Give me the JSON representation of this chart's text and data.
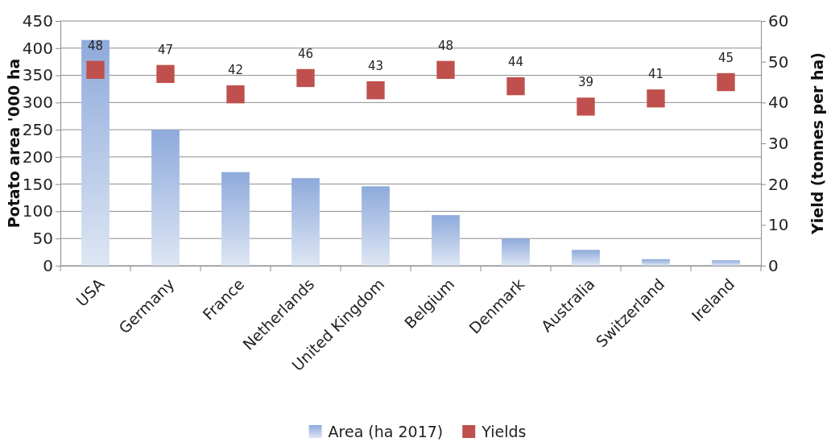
{
  "chart_data": {
    "type": "bar",
    "ylabel": "Potato area '000 ha",
    "y2label": "Yield (tonnes per ha)",
    "categories": [
      "USA",
      "Germany",
      "France",
      "Netherlands",
      "United Kingdom",
      "Belgium",
      "Denmark",
      "Australia",
      "Switzerland",
      "Ireland"
    ],
    "series": [
      {
        "name": "Area (ha 2017)",
        "color": "#8eaadb",
        "values": [
          415,
          250,
          172,
          161,
          146,
          93,
          50,
          29,
          12,
          10
        ]
      },
      {
        "name": "Yields",
        "type": "scatter",
        "axis": "y2",
        "color": "#c0504d",
        "marker": "square",
        "values": [
          48,
          47,
          42,
          46,
          43,
          48,
          44,
          39,
          41,
          45
        ],
        "value_labels": [
          "48",
          "47",
          "42",
          "46",
          "43",
          "48",
          "44",
          "39",
          "41",
          "45"
        ]
      }
    ],
    "ylim": [
      0,
      450
    ],
    "yticks": [
      0,
      50,
      100,
      150,
      200,
      250,
      300,
      350,
      400,
      450
    ],
    "y2lim": [
      0,
      60
    ],
    "y2ticks": [
      0,
      10,
      20,
      30,
      40,
      50,
      60
    ],
    "grid": "y",
    "legend": "bottom"
  }
}
